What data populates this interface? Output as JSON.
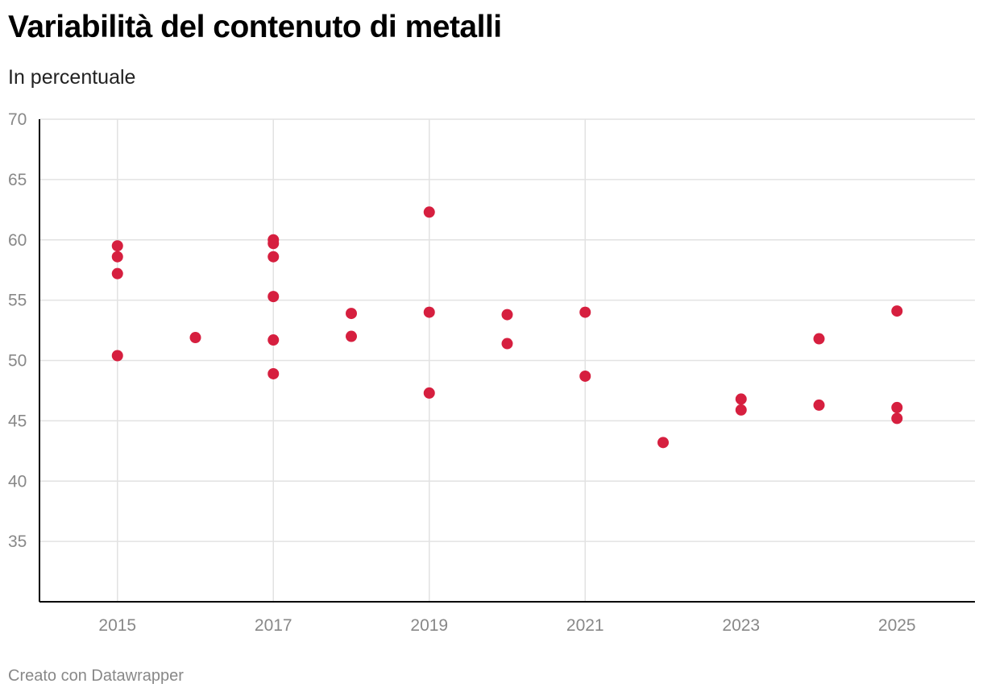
{
  "header": {
    "title": "Variabilità del contenuto di metalli",
    "subtitle": "In percentuale"
  },
  "footer": {
    "credit": "Creato con Datawrapper"
  },
  "colors": {
    "dot": "#d61f3f",
    "grid": "#e2e2e2",
    "axis": "#000000",
    "tick_text": "#888888"
  },
  "chart_data": {
    "type": "scatter",
    "title": "Variabilità del contenuto di metalli",
    "subtitle": "In percentuale",
    "xlim": [
      2014,
      2026
    ],
    "ylim": [
      30,
      70
    ],
    "x_ticks": [
      2015,
      2017,
      2019,
      2021,
      2023,
      2025
    ],
    "x_tick_labels": [
      "2015",
      "2017",
      "2019",
      "2021",
      "2023",
      "2025"
    ],
    "x_gridlines": [
      2015,
      2017,
      2019,
      2021
    ],
    "y_ticks": [
      35,
      40,
      45,
      50,
      55,
      60,
      65,
      70
    ],
    "y_tick_labels": [
      "35",
      "40",
      "45",
      "50",
      "55",
      "60",
      "65",
      "70"
    ],
    "grid": true,
    "points": [
      {
        "x": 2015,
        "y": 59.5
      },
      {
        "x": 2015,
        "y": 58.6
      },
      {
        "x": 2015,
        "y": 57.2
      },
      {
        "x": 2015,
        "y": 50.4
      },
      {
        "x": 2016,
        "y": 51.9
      },
      {
        "x": 2017,
        "y": 60.0
      },
      {
        "x": 2017,
        "y": 59.7
      },
      {
        "x": 2017,
        "y": 58.6
      },
      {
        "x": 2017,
        "y": 55.3
      },
      {
        "x": 2017,
        "y": 51.7
      },
      {
        "x": 2017,
        "y": 48.9
      },
      {
        "x": 2018,
        "y": 53.9
      },
      {
        "x": 2018,
        "y": 52.0
      },
      {
        "x": 2019,
        "y": 62.3
      },
      {
        "x": 2019,
        "y": 54.0
      },
      {
        "x": 2019,
        "y": 47.3
      },
      {
        "x": 2020,
        "y": 53.8
      },
      {
        "x": 2020,
        "y": 51.4
      },
      {
        "x": 2021,
        "y": 54.0
      },
      {
        "x": 2021,
        "y": 48.7
      },
      {
        "x": 2022,
        "y": 43.2
      },
      {
        "x": 2023,
        "y": 46.8
      },
      {
        "x": 2023,
        "y": 45.9
      },
      {
        "x": 2024,
        "y": 51.8
      },
      {
        "x": 2024,
        "y": 46.3
      },
      {
        "x": 2025,
        "y": 54.1
      },
      {
        "x": 2025,
        "y": 46.1
      },
      {
        "x": 2025,
        "y": 45.2
      }
    ]
  }
}
